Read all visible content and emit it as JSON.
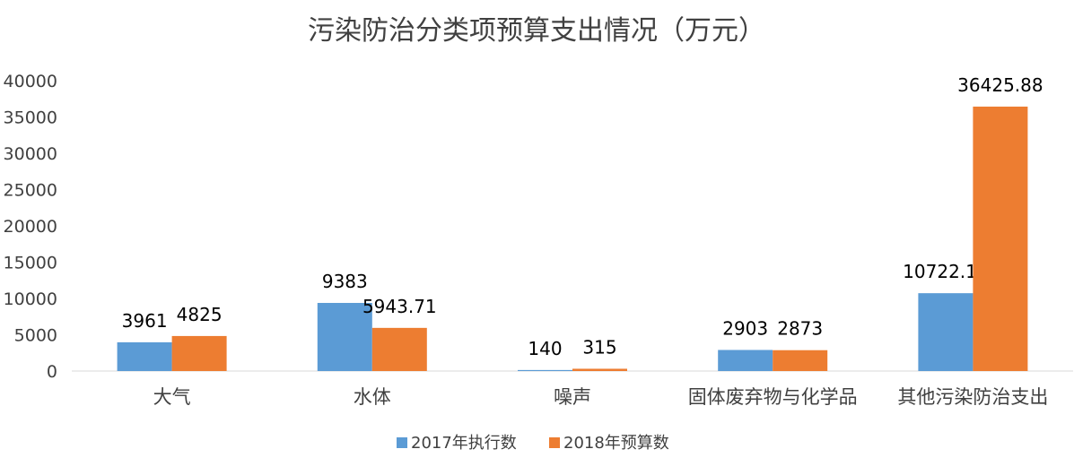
{
  "chart_data": {
    "type": "bar",
    "title": "污染防治分类项预算支出情况（万元）",
    "categories": [
      "大气",
      "水体",
      "噪声",
      "固体废弃物与化学品",
      "其他污染防治支出"
    ],
    "series": [
      {
        "name": "2017年执行数",
        "values": [
          3961,
          9383,
          140,
          2903,
          10722.11
        ],
        "labels": [
          "3961",
          "9383",
          "140",
          "2903",
          "10722.11"
        ],
        "color": "#5B9BD5"
      },
      {
        "name": "2018年预算数",
        "values": [
          4825,
          5943.71,
          315,
          2873,
          36425.88
        ],
        "labels": [
          "4825",
          "5943.71",
          "315",
          "2873",
          "36425.88"
        ],
        "color": "#ED7D31"
      }
    ],
    "ylim": [
      0,
      40000
    ],
    "yticks": [
      "0",
      "5000",
      "10000",
      "15000",
      "20000",
      "25000",
      "30000",
      "35000",
      "40000"
    ],
    "grid": false,
    "legend": "bottom"
  }
}
